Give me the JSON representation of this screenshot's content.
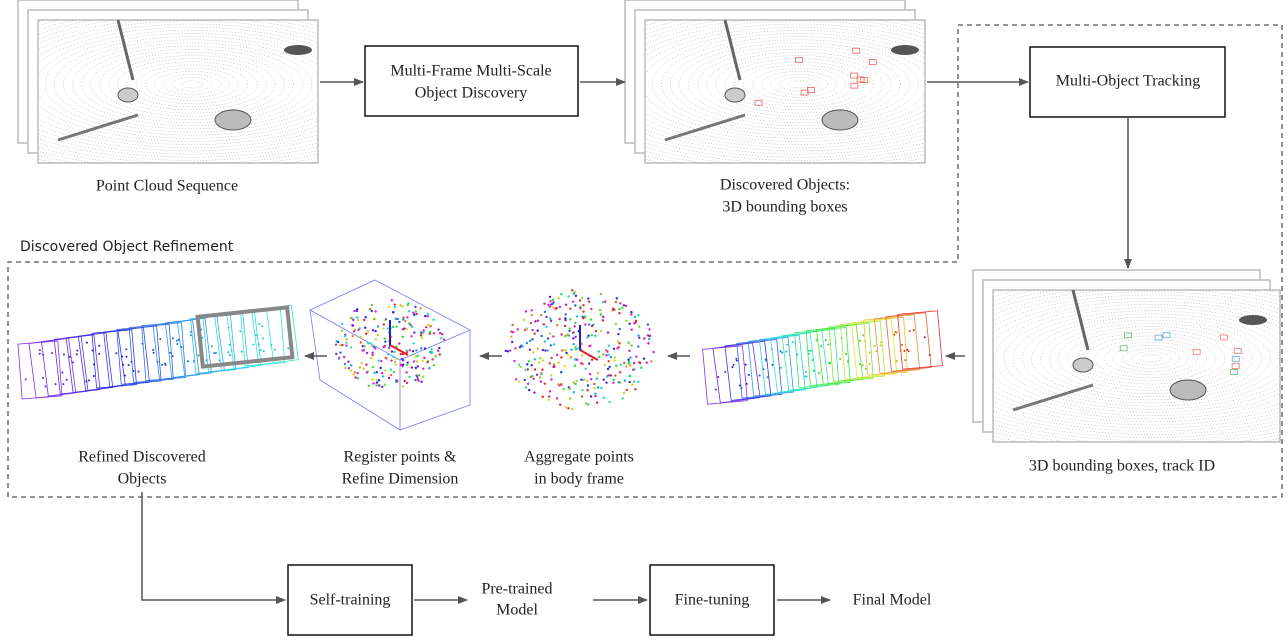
{
  "region_label": "Discovered Object Refinement",
  "boxes": {
    "discovery": [
      "Multi-Frame Multi-Scale",
      "Object Discovery"
    ],
    "tracking": [
      "Multi-Object Tracking"
    ],
    "self_training": [
      "Self-training"
    ],
    "fine_tuning": [
      "Fine-tuning"
    ]
  },
  "captions": {
    "point_cloud": [
      "Point Cloud Sequence"
    ],
    "discovered": [
      "Discovered Objects:",
      "3D bounding boxes"
    ],
    "tracked": [
      "3D bounding boxes, track ID"
    ],
    "aggregate": [
      "Aggregate points",
      "in body frame"
    ],
    "register": [
      "Register points &",
      "Refine Dimension"
    ],
    "refined": [
      "Refined Discovered",
      "Objects"
    ],
    "pretrained": [
      "Pre-trained",
      "Model"
    ],
    "final": [
      "Final Model"
    ]
  }
}
